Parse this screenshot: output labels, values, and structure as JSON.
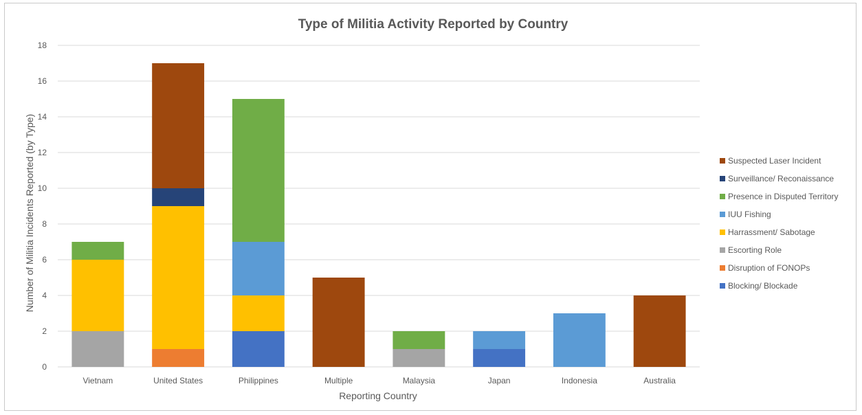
{
  "chart_data": {
    "type": "bar",
    "stacked": true,
    "title": "Type of Militia Activity Reported by Country",
    "xlabel": "Reporting Country",
    "ylabel": "Number of Militia Incidents Reported (by Type)",
    "ylim": [
      0,
      18
    ],
    "yticks": [
      0,
      2,
      4,
      6,
      8,
      10,
      12,
      14,
      16,
      18
    ],
    "grid": true,
    "legend_position": "right",
    "categories": [
      "Vietnam",
      "United States",
      "Philippines",
      "Multiple",
      "Malaysia",
      "Japan",
      "Indonesia",
      "Australia"
    ],
    "series": [
      {
        "name": "Blocking/ Blockade",
        "color": "#4472C4",
        "values": [
          0,
          0,
          2,
          0,
          0,
          1,
          0,
          0
        ]
      },
      {
        "name": "Disruption of FONOPs",
        "color": "#ED7D31",
        "values": [
          0,
          1,
          0,
          0,
          0,
          0,
          0,
          0
        ]
      },
      {
        "name": "Escorting Role",
        "color": "#A5A5A5",
        "values": [
          2,
          0,
          0,
          0,
          1,
          0,
          0,
          0
        ]
      },
      {
        "name": "Harrassment/ Sabotage",
        "color": "#FFC000",
        "values": [
          4,
          8,
          2,
          0,
          0,
          0,
          0,
          0
        ]
      },
      {
        "name": "IUU Fishing",
        "color": "#5B9BD5",
        "values": [
          0,
          0,
          3,
          0,
          0,
          1,
          3,
          0
        ]
      },
      {
        "name": "Presence in Disputed Territory",
        "color": "#70AD47",
        "values": [
          1,
          0,
          8,
          0,
          1,
          0,
          0,
          0
        ]
      },
      {
        "name": "Surveillance/ Reconaissance",
        "color": "#264478",
        "values": [
          0,
          1,
          0,
          0,
          0,
          0,
          0,
          0
        ]
      },
      {
        "name": "Suspected Laser Incident",
        "color": "#9E480E",
        "values": [
          0,
          7,
          0,
          5,
          0,
          0,
          0,
          4
        ]
      }
    ]
  }
}
